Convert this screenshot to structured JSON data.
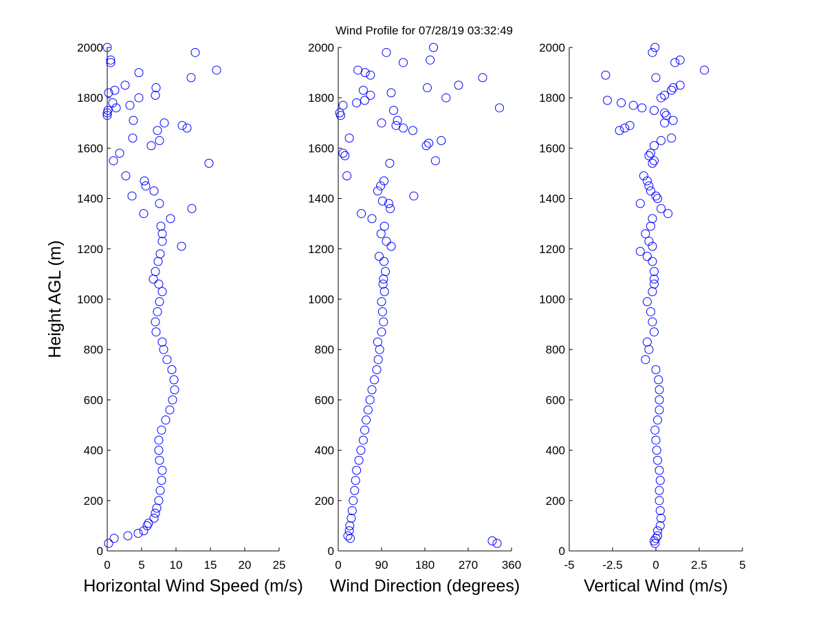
{
  "chart_data": [
    {
      "type": "scatter",
      "xlabel": "Horizontal Wind Speed (m/s)",
      "ylabel": "Height AGL (m)",
      "color": "#0000ff",
      "xlim": [
        0,
        25
      ],
      "xticks": [
        0,
        5,
        10,
        15,
        20,
        25
      ],
      "ylim": [
        0,
        2000
      ],
      "yticks": [
        0,
        200,
        400,
        600,
        800,
        1000,
        1200,
        1400,
        1600,
        1800,
        2000
      ],
      "x": [
        0.2,
        1,
        3,
        4.5,
        5.3,
        5.8,
        6,
        6.8,
        7,
        7.2,
        7.5,
        7.7,
        7.9,
        8,
        7.6,
        7.5,
        7.5,
        7.9,
        8.5,
        9.1,
        9.5,
        9.8,
        9.7,
        9.4,
        8.7,
        8.2,
        8,
        7.1,
        7,
        7.3,
        7.6,
        8,
        7.5,
        6.7,
        7,
        7.4,
        7.7,
        10.8,
        8,
        8,
        7.8,
        9.2,
        5.3,
        12.3,
        7.6,
        3.6,
        6.8,
        5.6,
        5.4,
        2.7,
        14.8,
        0.9,
        1.8,
        6.4,
        7.6,
        3.7,
        7.3,
        11.6,
        10.9,
        8.3,
        3.8,
        0,
        0,
        0.1,
        1.3,
        3.3,
        0.8,
        4.6,
        7,
        0.2,
        1.1,
        7.1,
        2.6,
        12.2,
        4.6,
        15.9,
        0.5,
        0.5,
        12.8,
        0
      ],
      "y": [
        30,
        50,
        60,
        70,
        80,
        100,
        110,
        130,
        150,
        170,
        200,
        240,
        280,
        320,
        360,
        400,
        440,
        480,
        520,
        560,
        600,
        640,
        680,
        720,
        760,
        800,
        830,
        870,
        910,
        950,
        990,
        1030,
        1060,
        1080,
        1110,
        1150,
        1180,
        1210,
        1230,
        1260,
        1290,
        1320,
        1340,
        1360,
        1380,
        1410,
        1430,
        1450,
        1470,
        1490,
        1540,
        1550,
        1580,
        1610,
        1630,
        1640,
        1670,
        1680,
        1690,
        1700,
        1710,
        1730,
        1740,
        1750,
        1760,
        1770,
        1780,
        1800,
        1810,
        1820,
        1830,
        1840,
        1850,
        1880,
        1900,
        1910,
        1940,
        1950,
        1980,
        2000
      ]
    },
    {
      "type": "scatter",
      "title": "Wind Profile for  07/28/19 03:32:49",
      "xlabel": "Wind Direction (degrees)",
      "color": "#0000ff",
      "xlim": [
        0,
        360
      ],
      "xticks": [
        0,
        90,
        180,
        270,
        360
      ],
      "ylim": [
        0,
        2000
      ],
      "yticks": [
        0,
        200,
        400,
        600,
        800,
        1000,
        1200,
        1400,
        1600,
        1800,
        2000
      ],
      "x": [
        330,
        320,
        25,
        20,
        23,
        24,
        27,
        29,
        31,
        34,
        36,
        38,
        43,
        47,
        52,
        55,
        58,
        62,
        66,
        70,
        75,
        80,
        83,
        86,
        82,
        90,
        94,
        92,
        90,
        96,
        93,
        94,
        98,
        95,
        85,
        110,
        100,
        89,
        96,
        70,
        48,
        108,
        105,
        92,
        157,
        82,
        88,
        95,
        18,
        107,
        202,
        14,
        10,
        183,
        188,
        214,
        23,
        155,
        135,
        120,
        90,
        123,
        5,
        3,
        115,
        335,
        10,
        38,
        55,
        224,
        67,
        110,
        52,
        185,
        250,
        300,
        67,
        56,
        41,
        135,
        191,
        100,
        198
      ],
      "y": [
        30,
        40,
        50,
        60,
        80,
        100,
        130,
        160,
        200,
        240,
        280,
        320,
        360,
        400,
        440,
        480,
        520,
        560,
        600,
        640,
        680,
        720,
        760,
        800,
        830,
        870,
        910,
        950,
        990,
        1030,
        1060,
        1080,
        1110,
        1150,
        1170,
        1210,
        1230,
        1260,
        1290,
        1320,
        1340,
        1360,
        1380,
        1390,
        1410,
        1430,
        1450,
        1470,
        1490,
        1540,
        1550,
        1570,
        1580,
        1610,
        1620,
        1630,
        1640,
        1670,
        1680,
        1690,
        1700,
        1710,
        1730,
        1740,
        1750,
        1760,
        1770,
        1780,
        1790,
        1800,
        1810,
        1820,
        1830,
        1840,
        1850,
        1880,
        1890,
        1900,
        1910,
        1940,
        1950,
        1980,
        2000
      ]
    },
    {
      "type": "scatter",
      "xlabel": "Vertical Wind (m/s)",
      "color": "#0000ff",
      "xlim": [
        -5,
        5
      ],
      "xticks": [
        -5,
        -2.5,
        0,
        2.5,
        5
      ],
      "ylim": [
        0,
        2000
      ],
      "yticks": [
        0,
        200,
        400,
        600,
        800,
        1000,
        1200,
        1400,
        1600,
        1800,
        2000
      ],
      "x": [
        -0.05,
        -0.1,
        0,
        0.1,
        0.1,
        0.25,
        0.3,
        0.25,
        0.2,
        0.2,
        0.25,
        0.2,
        0.1,
        0.05,
        0,
        -0.05,
        0.1,
        0.2,
        0.2,
        0.2,
        0.15,
        0,
        -0.6,
        -0.4,
        -0.5,
        -0.1,
        -0.2,
        -0.3,
        -0.5,
        -0.2,
        -0.1,
        -0.1,
        -0.1,
        -0.2,
        -0.5,
        -0.9,
        -0.2,
        -0.4,
        -0.6,
        -0.3,
        -0.2,
        0.7,
        0.3,
        -0.9,
        0.1,
        0,
        -0.3,
        -0.4,
        -0.5,
        -0.7,
        -0.2,
        -0.1,
        -0.4,
        -0.3,
        -0.1,
        0.3,
        0.9,
        -2.1,
        -1.8,
        -1.5,
        0.5,
        1,
        0.6,
        0.5,
        -0.1,
        -0.8,
        -1.3,
        -2,
        -2.8,
        0.3,
        0.5,
        0.9,
        1,
        1.4,
        0,
        -2.9,
        2.8,
        1.1,
        1.4,
        -0.2,
        -0.05
      ],
      "y": [
        30,
        40,
        50,
        60,
        80,
        100,
        130,
        160,
        200,
        240,
        280,
        320,
        360,
        400,
        440,
        480,
        520,
        560,
        600,
        640,
        680,
        720,
        760,
        800,
        830,
        870,
        910,
        950,
        990,
        1030,
        1060,
        1080,
        1110,
        1150,
        1170,
        1190,
        1210,
        1230,
        1260,
        1290,
        1320,
        1340,
        1360,
        1380,
        1400,
        1410,
        1430,
        1450,
        1470,
        1490,
        1540,
        1550,
        1570,
        1580,
        1610,
        1630,
        1640,
        1670,
        1680,
        1690,
        1700,
        1710,
        1730,
        1740,
        1750,
        1760,
        1770,
        1780,
        1790,
        1800,
        1810,
        1830,
        1840,
        1850,
        1880,
        1890,
        1910,
        1940,
        1950,
        1980,
        2000
      ]
    }
  ]
}
